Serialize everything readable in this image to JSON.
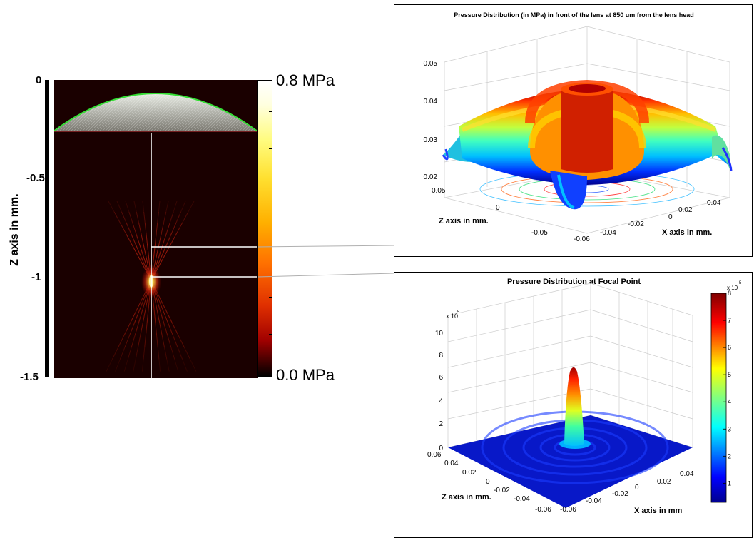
{
  "chart_data": [
    {
      "type": "heatmap",
      "title": "",
      "ylabel": "Z axis in mm.",
      "y_ticks": [
        "0",
        "-0.5",
        "-1",
        "-1.5"
      ],
      "ylim": [
        -1.5,
        0
      ],
      "colorbar": {
        "max_label": "0.8 MPa",
        "min_label": "0.0 MPa",
        "range": [
          0,
          0.8
        ]
      },
      "focus_z": -1.0,
      "profile_z": -0.85,
      "colors": {
        "background": "#1a0000",
        "beam": "#c83214",
        "focus": "#fff0a0",
        "lens_outline": "#33dd33"
      }
    },
    {
      "type": "surface",
      "title": "Pressure Distribution (in MPa) in front of the lens at 850 um from the lens head",
      "xlabel": "X axis  in mm.",
      "ylabel": "Z axis in mm.",
      "z_ticks": [
        "0.02",
        "0.03",
        "0.04",
        "0.05"
      ],
      "zlim": [
        0.02,
        0.05
      ],
      "x_ticks": [
        "-0.06",
        "-0.04",
        "-0.02",
        "0",
        "0.02",
        "0.04"
      ],
      "y_ticks": [
        "0.05",
        "0",
        "-0.05"
      ]
    },
    {
      "type": "surface",
      "title": "Pressure Distribution at Focal Point",
      "xlabel": "X axis  in mm",
      "ylabel": "Z axis in mm.",
      "z_ticks": [
        "0",
        "2",
        "4",
        "6",
        "8",
        "10"
      ],
      "zlim": [
        0,
        10
      ],
      "z_exponent": "x 10",
      "z_exponent_power": "5",
      "x_ticks": [
        "-0.06",
        "-0.04",
        "-0.02",
        "0",
        "0.02",
        "0.04"
      ],
      "y_ticks": [
        "0.06",
        "0.04",
        "0.02",
        "0",
        "-0.02",
        "-0.04",
        "-0.06"
      ],
      "peak": 7.4,
      "colorbar": {
        "ticks": [
          "1",
          "2",
          "3",
          "4",
          "5",
          "6",
          "7",
          "8"
        ],
        "range": [
          0.3,
          8
        ],
        "exponent": "x 10",
        "exponent_power": "5"
      }
    }
  ]
}
